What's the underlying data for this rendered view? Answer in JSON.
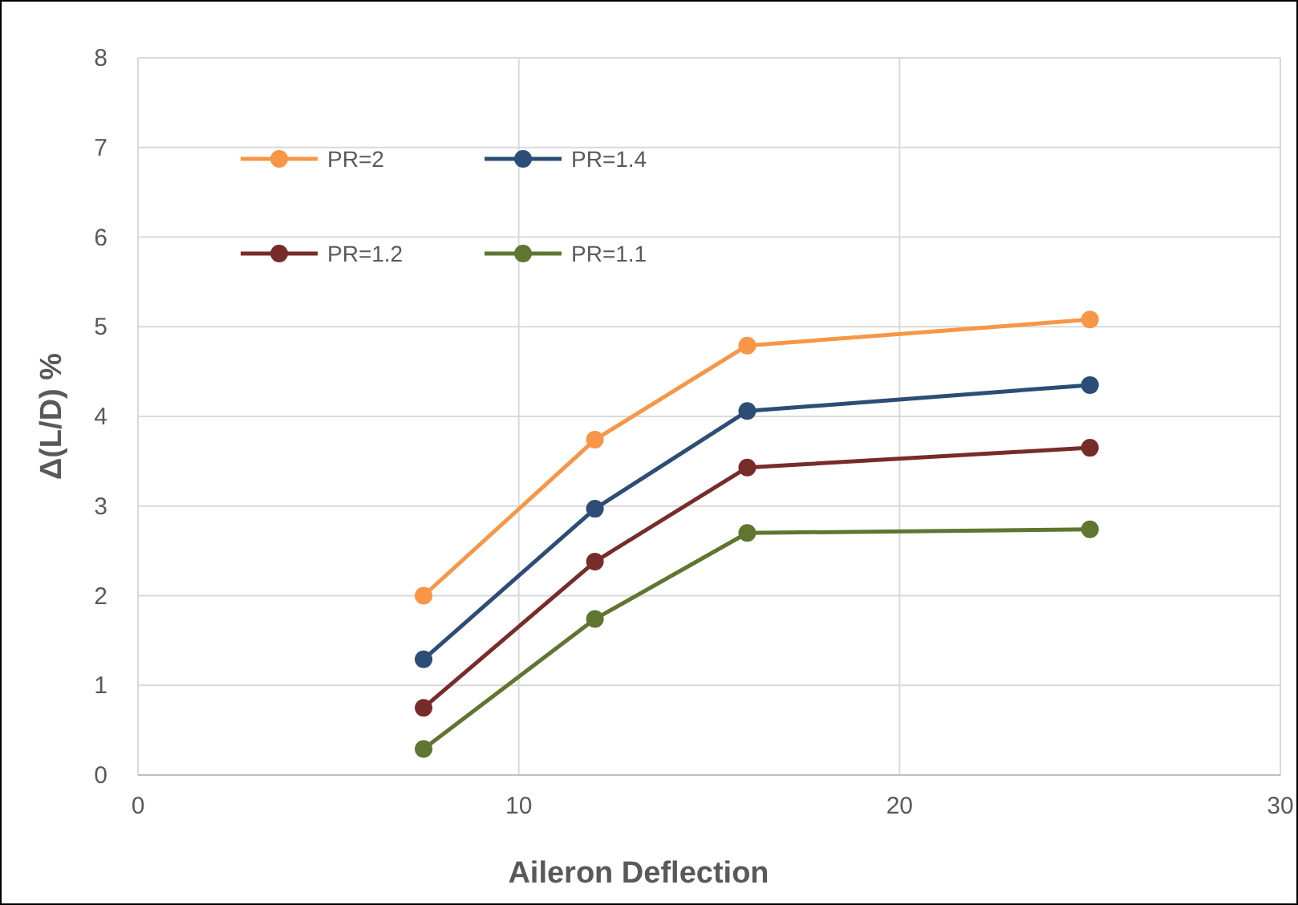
{
  "chart_data": {
    "type": "line",
    "xlabel": "Aileron Deflection",
    "ylabel": "Δ(L/D) %",
    "x": [
      7.5,
      12,
      16,
      25
    ],
    "xlim": [
      0,
      30
    ],
    "xticks": [
      0,
      10,
      20,
      30
    ],
    "ylim": [
      0,
      8
    ],
    "yticks": [
      0,
      1,
      2,
      3,
      4,
      5,
      6,
      7,
      8
    ],
    "grid": true,
    "legend": "top left",
    "marker": "circle",
    "line_style": "solid",
    "series": [
      {
        "name": "PR=2",
        "color": "#f79646",
        "values": [
          2.0,
          3.74,
          4.79,
          5.08
        ]
      },
      {
        "name": "PR=1.4",
        "color": "#2c4d75",
        "values": [
          1.29,
          2.97,
          4.06,
          4.35
        ]
      },
      {
        "name": "PR=1.2",
        "color": "#772c2a",
        "values": [
          0.75,
          2.38,
          3.43,
          3.65
        ]
      },
      {
        "name": "PR=1.1",
        "color": "#5f7530",
        "values": [
          0.29,
          1.74,
          2.7,
          2.74
        ]
      }
    ]
  }
}
